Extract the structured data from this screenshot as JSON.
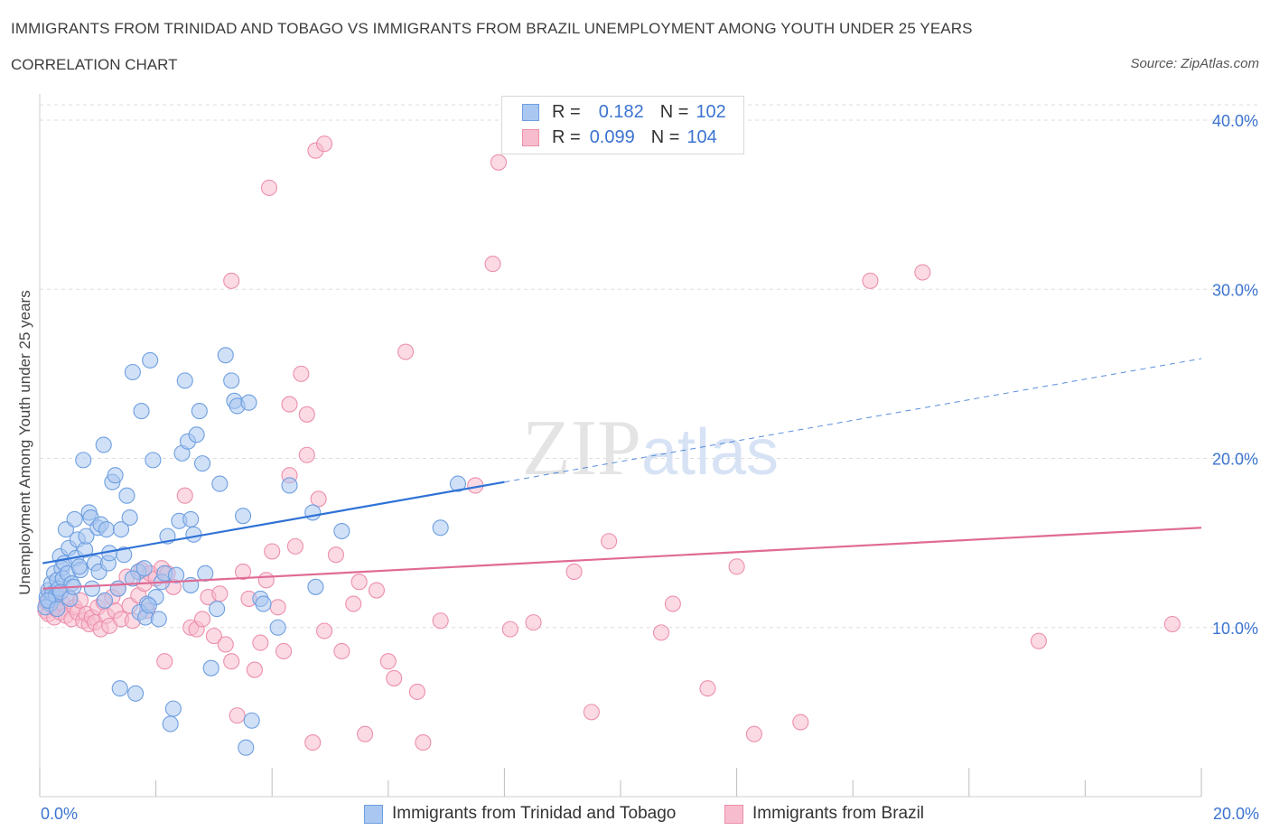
{
  "title": "IMMIGRANTS FROM TRINIDAD AND TOBAGO VS IMMIGRANTS FROM BRAZIL UNEMPLOYMENT AMONG YOUTH UNDER 25 YEARS",
  "subtitle": "CORRELATION CHART",
  "source": "Source: ZipAtlas.com",
  "watermark": "ZIPatlas",
  "legend": {
    "rows": [
      {
        "r_label": "R =",
        "r_value": "0.182",
        "n_label": "N =",
        "n_value": "102"
      },
      {
        "r_label": "R =",
        "r_value": "0.099",
        "n_label": "N =",
        "n_value": "104"
      }
    ]
  },
  "colors": {
    "series1_fill": "#a9c7f0",
    "series1_stroke": "#6e9fe0",
    "series1_line": "#2f72d6",
    "series2_fill": "#f7bccd",
    "series2_stroke": "#ec8fab",
    "series2_line": "#e06b95",
    "tick_label": "#3b73d0",
    "grid": "#dddddd"
  },
  "chart_data": {
    "type": "scatter",
    "title": "IMMIGRANTS FROM TRINIDAD AND TOBAGO VS IMMIGRANTS FROM BRAZIL UNEMPLOYMENT AMONG YOUTH UNDER 25 YEARS",
    "xlabel": "",
    "ylabel": "Unemployment Among Youth under 25 years",
    "xlim": [
      0,
      20
    ],
    "ylim": [
      0,
      40
    ],
    "x_tick_labels": [
      "0.0%",
      "20.0%"
    ],
    "y_ticks": [
      10,
      20,
      30,
      40
    ],
    "y_tick_labels": [
      "10.0%",
      "20.0%",
      "30.0%",
      "40.0%"
    ],
    "grid": true,
    "legend_position": "top-center",
    "series": [
      {
        "name": "Immigrants from Trinidad and Tobago",
        "trend": {
          "x0": 0.05,
          "y0": 13.8,
          "x1": 8.0,
          "y1": 18.6,
          "dashed_to_x": 20.0,
          "dashed_to_y": 25.9
        },
        "points": [
          [
            0.12,
            11.8
          ],
          [
            0.15,
            12.2
          ],
          [
            0.18,
            11.4
          ],
          [
            0.2,
            12.6
          ],
          [
            0.22,
            12.0
          ],
          [
            0.25,
            13.2
          ],
          [
            0.28,
            11.9
          ],
          [
            0.3,
            12.8
          ],
          [
            0.33,
            12.3
          ],
          [
            0.35,
            14.2
          ],
          [
            0.38,
            13.5
          ],
          [
            0.4,
            12.9
          ],
          [
            0.42,
            13.8
          ],
          [
            0.45,
            15.8
          ],
          [
            0.48,
            13.2
          ],
          [
            0.5,
            14.7
          ],
          [
            0.55,
            12.6
          ],
          [
            0.6,
            16.4
          ],
          [
            0.62,
            14.1
          ],
          [
            0.65,
            15.2
          ],
          [
            0.7,
            13.4
          ],
          [
            0.75,
            19.9
          ],
          [
            0.78,
            14.6
          ],
          [
            0.8,
            15.4
          ],
          [
            0.85,
            16.8
          ],
          [
            0.88,
            16.5
          ],
          [
            0.9,
            12.3
          ],
          [
            0.95,
            13.8
          ],
          [
            1.0,
            15.9
          ],
          [
            1.02,
            13.3
          ],
          [
            1.05,
            16.1
          ],
          [
            1.1,
            20.8
          ],
          [
            1.15,
            15.8
          ],
          [
            1.18,
            13.8
          ],
          [
            1.2,
            14.4
          ],
          [
            1.25,
            18.6
          ],
          [
            1.3,
            19.0
          ],
          [
            1.35,
            12.3
          ],
          [
            1.4,
            15.8
          ],
          [
            1.45,
            14.3
          ],
          [
            1.5,
            17.8
          ],
          [
            1.55,
            16.5
          ],
          [
            1.6,
            25.1
          ],
          [
            1.65,
            6.1
          ],
          [
            1.7,
            13.3
          ],
          [
            1.75,
            22.8
          ],
          [
            1.8,
            13.5
          ],
          [
            1.85,
            11.4
          ],
          [
            1.9,
            25.8
          ],
          [
            1.95,
            19.9
          ],
          [
            2.0,
            11.8
          ],
          [
            2.1,
            12.7
          ],
          [
            2.15,
            13.2
          ],
          [
            2.2,
            15.4
          ],
          [
            2.25,
            4.3
          ],
          [
            2.3,
            5.2
          ],
          [
            2.4,
            16.3
          ],
          [
            2.45,
            20.3
          ],
          [
            2.5,
            24.6
          ],
          [
            2.55,
            21.0
          ],
          [
            2.6,
            16.4
          ],
          [
            2.65,
            15.5
          ],
          [
            2.7,
            21.4
          ],
          [
            2.75,
            22.8
          ],
          [
            2.8,
            19.7
          ],
          [
            2.85,
            13.2
          ],
          [
            3.1,
            18.5
          ],
          [
            3.2,
            26.1
          ],
          [
            3.3,
            24.6
          ],
          [
            3.35,
            23.4
          ],
          [
            3.4,
            23.1
          ],
          [
            3.5,
            16.6
          ],
          [
            3.55,
            2.9
          ],
          [
            3.8,
            11.7
          ],
          [
            3.85,
            11.4
          ],
          [
            4.1,
            10.0
          ],
          [
            4.3,
            18.4
          ],
          [
            4.7,
            16.8
          ],
          [
            4.75,
            12.4
          ],
          [
            5.2,
            15.7
          ],
          [
            6.9,
            15.9
          ],
          [
            7.2,
            18.5
          ],
          [
            0.1,
            11.2
          ],
          [
            0.14,
            11.6
          ],
          [
            0.3,
            11.1
          ],
          [
            0.36,
            12.1
          ],
          [
            0.52,
            11.7
          ],
          [
            0.58,
            12.4
          ],
          [
            0.68,
            13.6
          ],
          [
            1.12,
            11.6
          ],
          [
            1.38,
            6.4
          ],
          [
            1.6,
            12.9
          ],
          [
            1.72,
            10.9
          ],
          [
            1.82,
            10.6
          ],
          [
            1.88,
            11.3
          ],
          [
            2.05,
            10.5
          ],
          [
            2.35,
            13.1
          ],
          [
            2.6,
            12.5
          ],
          [
            2.95,
            7.6
          ],
          [
            3.05,
            11.1
          ],
          [
            3.6,
            23.3
          ],
          [
            3.65,
            4.5
          ]
        ]
      },
      {
        "name": "Immigrants from Brazil",
        "trend": {
          "x0": 0.05,
          "y0": 12.3,
          "x1": 20.0,
          "y1": 15.9
        },
        "points": [
          [
            0.1,
            11.0
          ],
          [
            0.12,
            11.5
          ],
          [
            0.15,
            10.8
          ],
          [
            0.18,
            11.9
          ],
          [
            0.22,
            11.3
          ],
          [
            0.25,
            10.6
          ],
          [
            0.28,
            11.1
          ],
          [
            0.3,
            12.0
          ],
          [
            0.35,
            10.9
          ],
          [
            0.4,
            11.4
          ],
          [
            0.45,
            10.7
          ],
          [
            0.5,
            11.8
          ],
          [
            0.55,
            10.5
          ],
          [
            0.6,
            11.2
          ],
          [
            0.65,
            10.9
          ],
          [
            0.7,
            11.6
          ],
          [
            0.75,
            10.4
          ],
          [
            0.8,
            10.8
          ],
          [
            0.85,
            10.2
          ],
          [
            0.9,
            10.6
          ],
          [
            0.95,
            10.3
          ],
          [
            1.0,
            11.2
          ],
          [
            1.05,
            9.9
          ],
          [
            1.1,
            11.5
          ],
          [
            1.15,
            10.7
          ],
          [
            1.2,
            10.1
          ],
          [
            1.25,
            11.8
          ],
          [
            1.3,
            11.0
          ],
          [
            1.35,
            12.3
          ],
          [
            1.4,
            10.5
          ],
          [
            1.5,
            13.0
          ],
          [
            1.55,
            11.3
          ],
          [
            1.6,
            10.4
          ],
          [
            1.7,
            11.9
          ],
          [
            1.75,
            13.4
          ],
          [
            1.8,
            12.6
          ],
          [
            1.85,
            11.0
          ],
          [
            1.9,
            13.2
          ],
          [
            2.0,
            12.9
          ],
          [
            2.1,
            13.5
          ],
          [
            2.15,
            8.0
          ],
          [
            2.2,
            13.2
          ],
          [
            2.3,
            12.4
          ],
          [
            2.5,
            17.8
          ],
          [
            2.6,
            10.0
          ],
          [
            2.7,
            9.9
          ],
          [
            2.8,
            10.5
          ],
          [
            2.9,
            11.8
          ],
          [
            3.0,
            9.5
          ],
          [
            3.1,
            12.0
          ],
          [
            3.2,
            9.0
          ],
          [
            3.3,
            8.0
          ],
          [
            3.4,
            4.8
          ],
          [
            3.5,
            13.3
          ],
          [
            3.6,
            11.7
          ],
          [
            3.7,
            7.5
          ],
          [
            3.8,
            9.1
          ],
          [
            3.9,
            12.8
          ],
          [
            4.0,
            14.5
          ],
          [
            4.1,
            11.2
          ],
          [
            4.2,
            8.6
          ],
          [
            4.3,
            19.0
          ],
          [
            4.4,
            14.8
          ],
          [
            4.5,
            25.0
          ],
          [
            4.6,
            22.6
          ],
          [
            4.7,
            3.2
          ],
          [
            4.8,
            17.6
          ],
          [
            4.9,
            9.8
          ],
          [
            5.1,
            14.3
          ],
          [
            5.2,
            8.6
          ],
          [
            5.4,
            11.4
          ],
          [
            5.5,
            12.7
          ],
          [
            5.6,
            3.7
          ],
          [
            5.8,
            12.2
          ],
          [
            6.0,
            8.0
          ],
          [
            6.1,
            7.0
          ],
          [
            6.3,
            26.3
          ],
          [
            6.5,
            6.2
          ],
          [
            6.6,
            3.2
          ],
          [
            6.9,
            10.4
          ],
          [
            7.5,
            18.4
          ],
          [
            8.1,
            9.9
          ],
          [
            8.5,
            10.3
          ],
          [
            9.2,
            13.3
          ],
          [
            9.5,
            5.0
          ],
          [
            9.8,
            15.1
          ],
          [
            10.7,
            9.7
          ],
          [
            10.9,
            11.4
          ],
          [
            11.5,
            6.4
          ],
          [
            12.0,
            13.6
          ],
          [
            12.3,
            3.7
          ],
          [
            13.1,
            4.4
          ],
          [
            14.3,
            30.5
          ],
          [
            15.2,
            31.0
          ],
          [
            17.2,
            9.2
          ],
          [
            19.5,
            10.2
          ],
          [
            3.95,
            36.0
          ],
          [
            4.75,
            38.2
          ],
          [
            4.9,
            38.6
          ],
          [
            7.9,
            37.5
          ],
          [
            7.8,
            31.5
          ],
          [
            3.3,
            30.5
          ],
          [
            4.3,
            23.2
          ],
          [
            4.6,
            20.2
          ]
        ]
      }
    ]
  },
  "bottom_legend": [
    {
      "label": "Immigrants from Trinidad and Tobago"
    },
    {
      "label": "Immigrants from Brazil"
    }
  ]
}
